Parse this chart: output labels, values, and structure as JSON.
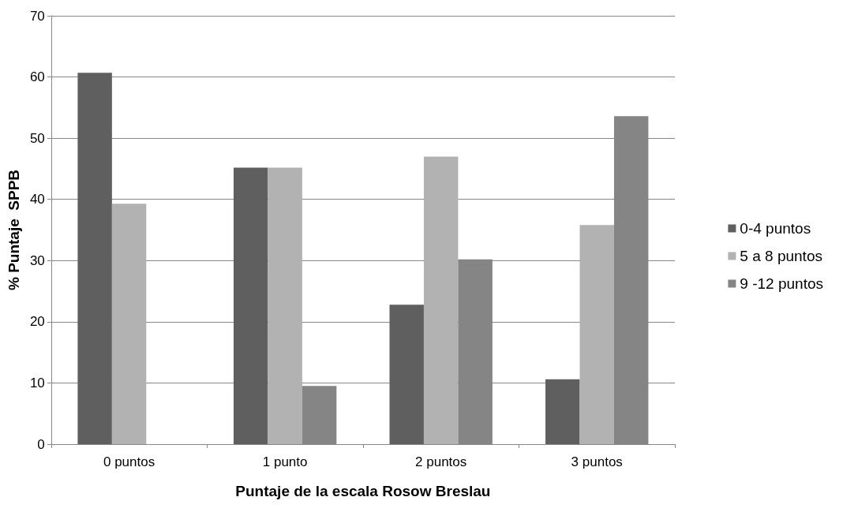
{
  "chart_data": {
    "type": "bar",
    "xlabel": "Puntaje de la escala Rosow Breslau",
    "ylabel": "% Puntaje  SPPB",
    "categories": [
      "0 puntos",
      "1 punto",
      "2 puntos",
      "3 puntos"
    ],
    "series": [
      {
        "name": "0-4 puntos",
        "color": "#5f5f5f",
        "values": [
          60.7,
          45.2,
          22.8,
          10.6
        ]
      },
      {
        "name": "5 a 8 puntos",
        "color": "#b2b2b2",
        "values": [
          39.3,
          45.2,
          47,
          35.8
        ]
      },
      {
        "name": "9 -12 puntos",
        "color": "#858585",
        "values": [
          0,
          9.5,
          30.2,
          53.6
        ]
      }
    ],
    "ylim": [
      0,
      70
    ],
    "yticks": [
      0,
      10,
      20,
      30,
      40,
      50,
      60,
      70
    ],
    "grid": "y",
    "legend": "right"
  }
}
